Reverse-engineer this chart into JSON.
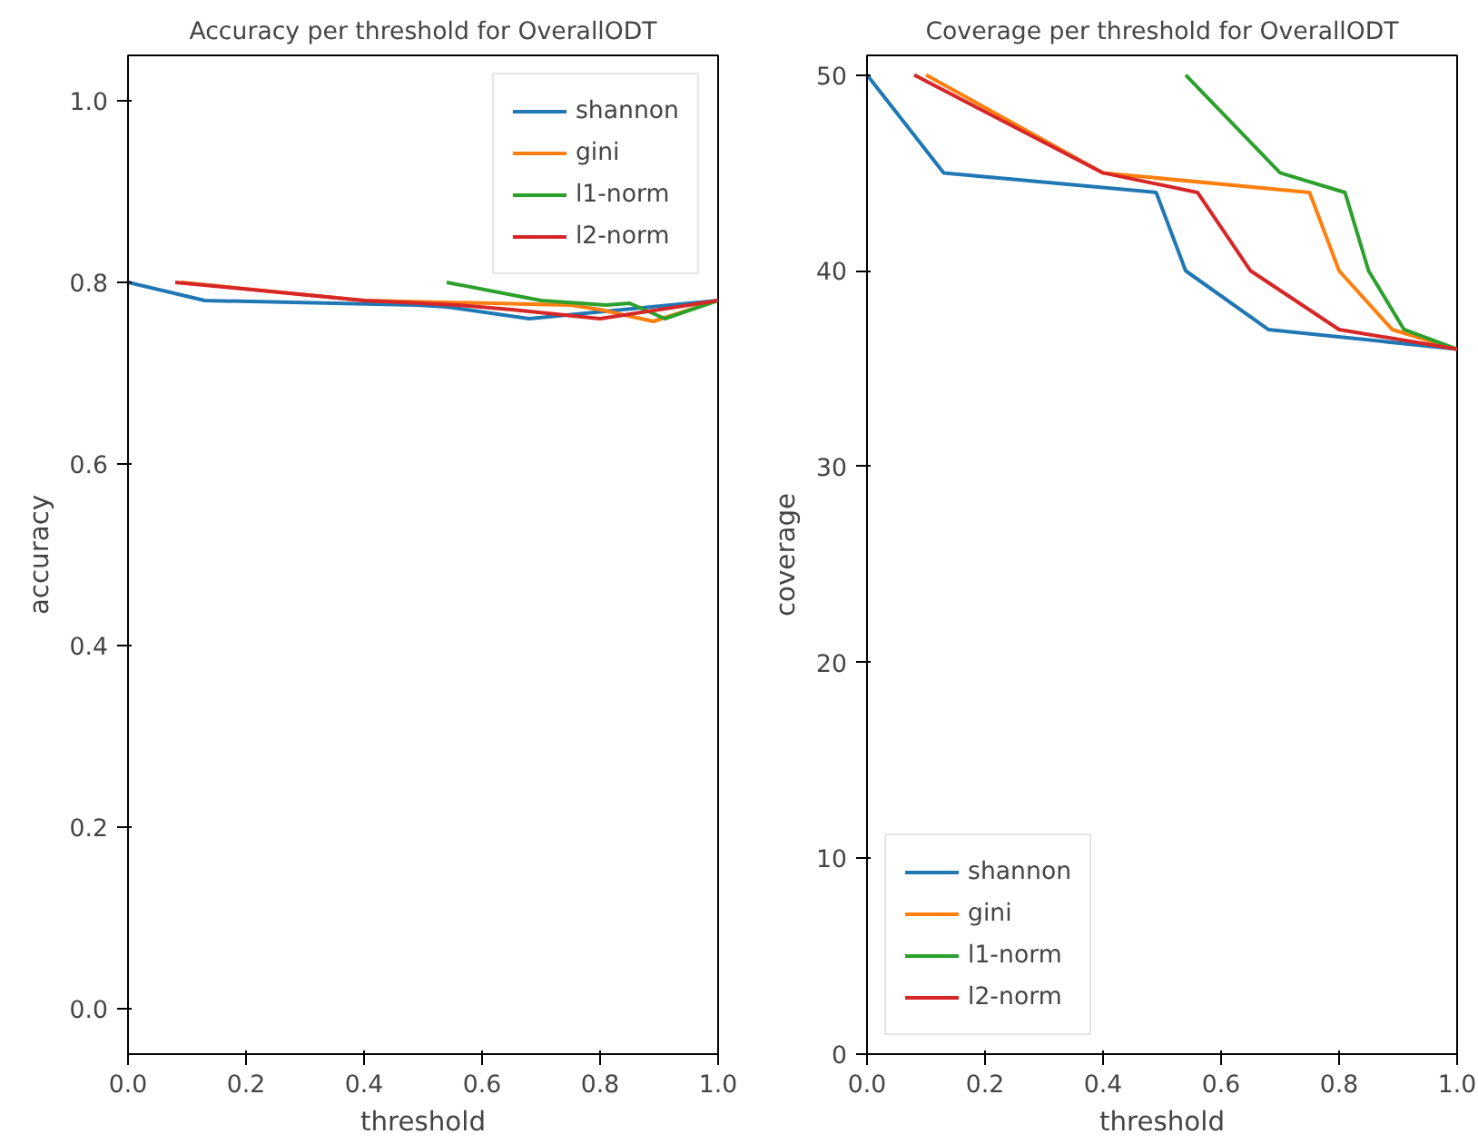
{
  "chart_data": [
    {
      "type": "line",
      "title": "Accuracy per threshold for OverallODT",
      "xlabel": "threshold",
      "ylabel": "accuracy",
      "xlim": [
        0,
        1
      ],
      "ylim": [
        -0.05,
        1.05
      ],
      "xticks": [
        {
          "value": 0,
          "label": "0.0"
        },
        {
          "value": 0.2,
          "label": "0.2"
        },
        {
          "value": 0.4,
          "label": "0.4"
        },
        {
          "value": 0.6,
          "label": "0.6"
        },
        {
          "value": 0.8,
          "label": "0.8"
        },
        {
          "value": 1,
          "label": "1.0"
        }
      ],
      "yticks": [
        {
          "value": 0,
          "label": "0.0"
        },
        {
          "value": 0.2,
          "label": "0.2"
        },
        {
          "value": 0.4,
          "label": "0.4"
        },
        {
          "value": 0.6,
          "label": "0.6"
        },
        {
          "value": 0.8,
          "label": "0.8"
        },
        {
          "value": 1,
          "label": "1.0"
        }
      ],
      "grid": false,
      "legend": "top right",
      "series": [
        {
          "name": "shannon",
          "color": "#1f77b4",
          "x": [
            0,
            0.13,
            0.49,
            0.54,
            0.68,
            1
          ],
          "values": [
            0.8,
            0.78,
            0.775,
            0.773,
            0.76,
            0.78
          ]
        },
        {
          "name": "gini",
          "color": "#ff7f0e",
          "x": [
            0.09,
            0.4,
            0.75,
            0.8,
            0.89,
            1
          ],
          "values": [
            0.8,
            0.78,
            0.775,
            0.77,
            0.757,
            0.78
          ]
        },
        {
          "name": "l1-norm",
          "color": "#2ca02c",
          "x": [
            0.54,
            0.7,
            0.81,
            0.85,
            0.91,
            1
          ],
          "values": [
            0.8,
            0.78,
            0.775,
            0.777,
            0.76,
            0.78
          ]
        },
        {
          "name": "l2-norm",
          "color": "#d62728",
          "x": [
            0.08,
            0.4,
            0.56,
            0.65,
            0.8,
            1
          ],
          "values": [
            0.8,
            0.78,
            0.775,
            0.77,
            0.76,
            0.78
          ]
        }
      ]
    },
    {
      "type": "line",
      "title": "Coverage per threshold for OverallODT",
      "xlabel": "threshold",
      "ylabel": "coverage",
      "xlim": [
        0,
        1
      ],
      "ylim": [
        0,
        51
      ],
      "xticks": [
        {
          "value": 0,
          "label": "0.0"
        },
        {
          "value": 0.2,
          "label": "0.2"
        },
        {
          "value": 0.4,
          "label": "0.4"
        },
        {
          "value": 0.6,
          "label": "0.6"
        },
        {
          "value": 0.8,
          "label": "0.8"
        },
        {
          "value": 1,
          "label": "1.0"
        }
      ],
      "yticks": [
        0,
        10,
        20,
        30,
        40,
        50
      ],
      "grid": false,
      "legend": "bottom left",
      "series": [
        {
          "name": "shannon",
          "color": "#1f77b4",
          "x": [
            0,
            0.13,
            0.49,
            0.54,
            0.68,
            1
          ],
          "values": [
            50,
            45,
            44,
            40,
            37,
            36
          ]
        },
        {
          "name": "gini",
          "color": "#ff7f0e",
          "x": [
            0.1,
            0.4,
            0.75,
            0.8,
            0.89,
            1
          ],
          "values": [
            50,
            45,
            44,
            40,
            37,
            36
          ]
        },
        {
          "name": "l1-norm",
          "color": "#2ca02c",
          "x": [
            0.54,
            0.7,
            0.81,
            0.85,
            0.91,
            1
          ],
          "values": [
            50,
            45,
            44,
            40,
            37,
            36
          ]
        },
        {
          "name": "l2-norm",
          "color": "#d62728",
          "x": [
            0.08,
            0.4,
            0.56,
            0.65,
            0.8,
            1
          ],
          "values": [
            50,
            45,
            44,
            40,
            37,
            36
          ]
        }
      ]
    }
  ]
}
